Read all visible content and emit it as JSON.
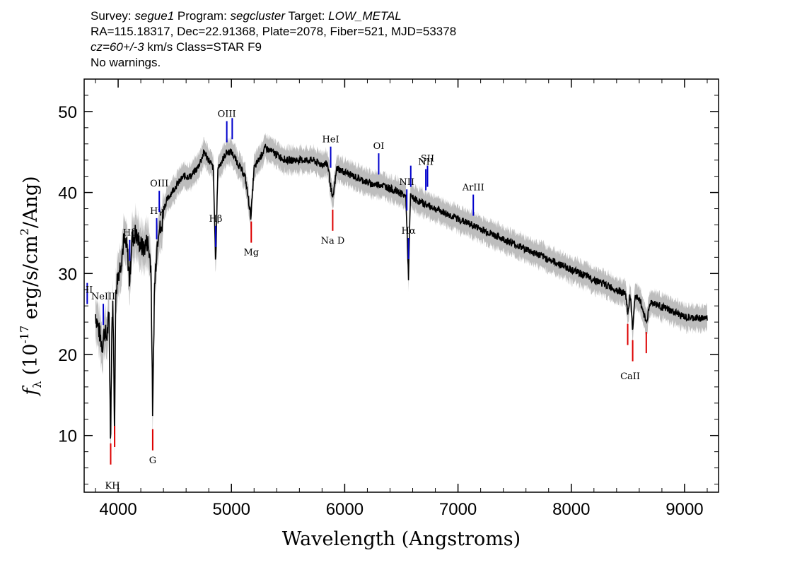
{
  "header": {
    "survey_label": "Survey:",
    "survey": "segue1",
    "program_label": "Program:",
    "program": "segcluster",
    "target_label": "Target:",
    "target": "LOW_METAL",
    "line2": "RA=115.18317, Dec=22.91368, Plate=2078, Fiber=521, MJD=53378",
    "cz": "cz=60+/-3",
    "cz_rest": " km/s Class=STAR F9",
    "warnings": "No warnings."
  },
  "chart_data": {
    "type": "line",
    "title": "",
    "xlabel": "Wavelength (Angstroms)",
    "ylabel": "f_λ (10^-17 erg/s/cm^2/Ang)",
    "xlim": [
      3700,
      9300
    ],
    "ylim": [
      3,
      54
    ],
    "xticks": [
      4000,
      5000,
      6000,
      7000,
      8000,
      9000
    ],
    "yticks": [
      10,
      20,
      30,
      40,
      50
    ],
    "colors": {
      "spectrum": "#000000",
      "error": "#bdbdbd",
      "emission": "#0000cc",
      "absorption": "#dd0000"
    },
    "spectrum": [
      [
        3800,
        25
      ],
      [
        3830,
        23
      ],
      [
        3860,
        21
      ],
      [
        3880,
        23
      ],
      [
        3900,
        22
      ],
      [
        3920,
        25
      ],
      [
        3933,
        9
      ],
      [
        3945,
        24
      ],
      [
        3955,
        26
      ],
      [
        3968,
        11
      ],
      [
        3980,
        28
      ],
      [
        4000,
        30
      ],
      [
        4020,
        31
      ],
      [
        4050,
        34
      ],
      [
        4080,
        33
      ],
      [
        4101,
        29
      ],
      [
        4120,
        34
      ],
      [
        4150,
        35
      ],
      [
        4180,
        34
      ],
      [
        4220,
        33
      ],
      [
        4260,
        34
      ],
      [
        4290,
        31
      ],
      [
        4305,
        12
      ],
      [
        4320,
        28
      ],
      [
        4340,
        33
      ],
      [
        4360,
        36
      ],
      [
        4380,
        35
      ],
      [
        4400,
        38
      ],
      [
        4430,
        39
      ],
      [
        4470,
        40
      ],
      [
        4520,
        41
      ],
      [
        4580,
        42
      ],
      [
        4640,
        42
      ],
      [
        4700,
        43
      ],
      [
        4760,
        45
      ],
      [
        4800,
        44
      ],
      [
        4840,
        43
      ],
      [
        4861,
        31
      ],
      [
        4880,
        43
      ],
      [
        4920,
        44
      ],
      [
        4960,
        45
      ],
      [
        5000,
        45
      ],
      [
        5040,
        44
      ],
      [
        5080,
        43
      ],
      [
        5120,
        42
      ],
      [
        5172,
        37
      ],
      [
        5200,
        43
      ],
      [
        5240,
        44
      ],
      [
        5300,
        45.5
      ],
      [
        5360,
        45
      ],
      [
        5420,
        44.5
      ],
      [
        5480,
        44
      ],
      [
        5540,
        44
      ],
      [
        5600,
        44
      ],
      [
        5660,
        44
      ],
      [
        5720,
        44
      ],
      [
        5780,
        43.5
      ],
      [
        5850,
        43.5
      ],
      [
        5893,
        39
      ],
      [
        5930,
        43
      ],
      [
        6000,
        42.5
      ],
      [
        6080,
        42
      ],
      [
        6160,
        41.5
      ],
      [
        6240,
        41
      ],
      [
        6320,
        41
      ],
      [
        6400,
        40.5
      ],
      [
        6480,
        40
      ],
      [
        6540,
        39.5
      ],
      [
        6563,
        29.5
      ],
      [
        6580,
        39.5
      ],
      [
        6640,
        39
      ],
      [
        6720,
        38.5
      ],
      [
        6800,
        38
      ],
      [
        6880,
        37.5
      ],
      [
        6960,
        37
      ],
      [
        7040,
        36.5
      ],
      [
        7120,
        36
      ],
      [
        7200,
        35.5
      ],
      [
        7280,
        35
      ],
      [
        7360,
        34.5
      ],
      [
        7440,
        34
      ],
      [
        7520,
        33.5
      ],
      [
        7600,
        33
      ],
      [
        7680,
        32.5
      ],
      [
        7760,
        32
      ],
      [
        7840,
        31.5
      ],
      [
        7920,
        31
      ],
      [
        8000,
        30.5
      ],
      [
        8080,
        30
      ],
      [
        8160,
        29.5
      ],
      [
        8240,
        29
      ],
      [
        8320,
        28.5
      ],
      [
        8400,
        28
      ],
      [
        8480,
        27.5
      ],
      [
        8498,
        25
      ],
      [
        8520,
        27.5
      ],
      [
        8542,
        23
      ],
      [
        8560,
        27
      ],
      [
        8600,
        27
      ],
      [
        8662,
        24
      ],
      [
        8700,
        26.5
      ],
      [
        8780,
        26
      ],
      [
        8860,
        25.5
      ],
      [
        8940,
        25
      ],
      [
        9020,
        24.5
      ],
      [
        9100,
        24.5
      ],
      [
        9200,
        24.5
      ]
    ],
    "emission_lines": [
      {
        "label": "",
        "x": 3727
      },
      {
        "label": "NeIII",
        "x": 3869
      },
      {
        "label": "Hδ",
        "x": 4102
      },
      {
        "label": "Hγ",
        "x": 4340
      },
      {
        "label": "OIII",
        "x": 4363
      },
      {
        "label": "Hβ",
        "x": 4861
      },
      {
        "label": "OIII",
        "x": 4959
      },
      {
        "label": "",
        "x": 5007
      },
      {
        "label": "HeI",
        "x": 5876
      },
      {
        "label": "OI",
        "x": 6300
      },
      {
        "label": "NII",
        "x": 6548
      },
      {
        "label": "Hα",
        "x": 6563
      },
      {
        "label": "",
        "x": 6583
      },
      {
        "label": "NII",
        "x": 6716
      },
      {
        "label": "SII",
        "x": 6731
      },
      {
        "label": "ArIII",
        "x": 7135
      }
    ],
    "emission_extra_label": "II",
    "absorption_lines": [
      {
        "label": "",
        "x": 3934
      },
      {
        "label": "",
        "x": 3969
      },
      {
        "label": "G",
        "x": 4305
      },
      {
        "label": "Mg",
        "x": 5175
      },
      {
        "label": "Na D",
        "x": 5894
      },
      {
        "label": "",
        "x": 8498
      },
      {
        "label": "",
        "x": 8542
      },
      {
        "label": "",
        "x": 8662
      }
    ],
    "kh_label": "KH",
    "caii_label": "CaII"
  }
}
